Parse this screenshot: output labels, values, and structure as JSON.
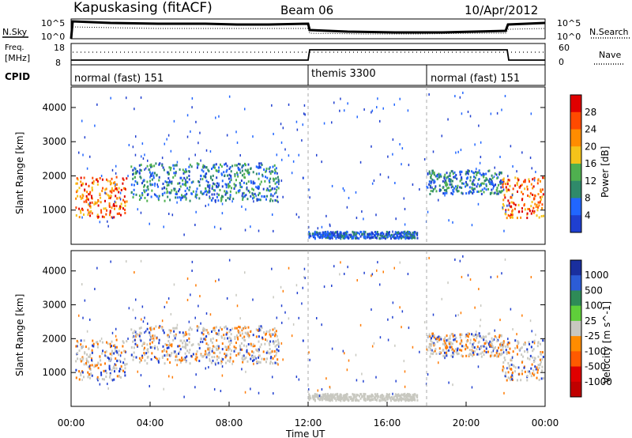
{
  "header": {
    "title": "Kapuskasing (fitACF)",
    "beam": "Beam 06",
    "date": "10/Apr/2012"
  },
  "noise_panel": {
    "left_label": "N.Sky",
    "right_label": "N.Search",
    "left_ticks": [
      "10^5",
      "10^0"
    ],
    "right_ticks": [
      "10^5",
      "10^0"
    ]
  },
  "freq_panel": {
    "left_label_line1": "Freq.",
    "left_label_line2": "[MHz]",
    "left_ticks": [
      "18",
      "8"
    ],
    "right_label": "Nave",
    "right_ticks": [
      "60",
      "0"
    ]
  },
  "cpid_panel": {
    "label": "CPID",
    "segments": [
      {
        "label": "normal (fast) 151",
        "start_hour": 0
      },
      {
        "label": "themis 3300",
        "start_hour": 12
      },
      {
        "label": "normal (fast) 151",
        "start_hour": 18
      }
    ]
  },
  "time_axis": {
    "label": "Time UT",
    "ticks": [
      "00:00",
      "04:00",
      "08:00",
      "12:00",
      "16:00",
      "20:00",
      "00:00"
    ],
    "range_hours": [
      0,
      24
    ]
  },
  "colors": {
    "power": [
      "#1f3fd0",
      "#2166ff",
      "#2f8a6a",
      "#4fb04f",
      "#f5c31a",
      "#ff8c00",
      "#ff4a00",
      "#e00000"
    ],
    "velocity_positive": "#1f3fd0",
    "velocity_ground": "#c8c8c0",
    "velocity_negative": "#ff7a00"
  },
  "chart_data": [
    {
      "type": "heatmap",
      "panel": "power",
      "ylabel": "Slant Range [km]",
      "ylim": [
        0,
        4600
      ],
      "yticks": [
        1000,
        2000,
        3000,
        4000
      ],
      "colorbar_label": "Power [dB]",
      "colorbar_ticks": [
        "28",
        "24",
        "20",
        "16",
        "12",
        "8",
        "4"
      ],
      "scatter_regions": [
        {
          "hours": [
            0.2,
            2.8
          ],
          "range_km": [
            800,
            2000
          ],
          "level": "high"
        },
        {
          "hours": [
            3.0,
            10.5
          ],
          "range_km": [
            1300,
            2400
          ],
          "level": "mid"
        },
        {
          "hours": [
            12.0,
            17.5
          ],
          "range_km": [
            200,
            400
          ],
          "level": "low"
        },
        {
          "hours": [
            18.0,
            21.8
          ],
          "range_km": [
            1500,
            2200
          ],
          "level": "mid"
        },
        {
          "hours": [
            21.8,
            23.9
          ],
          "range_km": [
            800,
            2000
          ],
          "level": "high"
        }
      ]
    },
    {
      "type": "heatmap",
      "panel": "velocity",
      "ylabel": "Slant Range [km]",
      "ylim": [
        0,
        4600
      ],
      "yticks": [
        1000,
        2000,
        3000,
        4000
      ],
      "colorbar_label": "Velocity [m s^-1]",
      "colorbar_ticks": [
        "1000",
        "500",
        "100",
        "25",
        "-25",
        "-100",
        "-500",
        "-1000"
      ]
    }
  ]
}
